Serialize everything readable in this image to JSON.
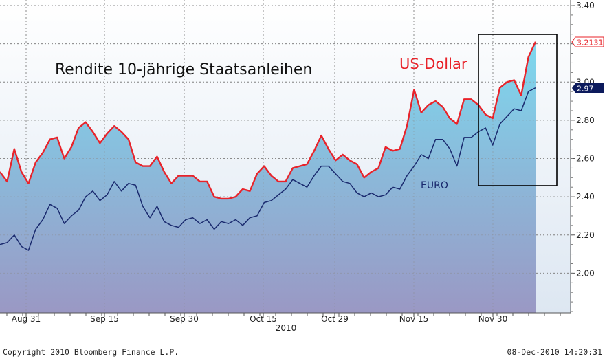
{
  "chart_data": {
    "type": "area",
    "title": "Rendite 10-jährige Staatsanleihen",
    "year_label": "2010",
    "x_tick_labels": [
      "Aug 31",
      "Sep 15",
      "Sep 30",
      "Oct 15",
      "Oct 29",
      "Nov 15",
      "Nov 30"
    ],
    "ylim": [
      1.8,
      3.4
    ],
    "y_ticks": [
      2.0,
      2.2,
      2.4,
      2.6,
      2.8,
      3.0,
      3.2,
      3.4
    ],
    "y_tick_labels": [
      "2.00",
      "2.20",
      "2.40",
      "2.60",
      "2.80",
      "3.00",
      "3.20",
      "3.40"
    ],
    "grid": true,
    "series": [
      {
        "name": "US-Dollar",
        "color": "#e8232a",
        "last_value_label": "3.2131",
        "values": [
          2.53,
          2.48,
          2.65,
          2.53,
          2.47,
          2.58,
          2.63,
          2.7,
          2.71,
          2.6,
          2.66,
          2.76,
          2.79,
          2.74,
          2.68,
          2.73,
          2.77,
          2.74,
          2.7,
          2.58,
          2.56,
          2.56,
          2.61,
          2.53,
          2.47,
          2.51,
          2.51,
          2.51,
          2.48,
          2.48,
          2.4,
          2.39,
          2.39,
          2.4,
          2.44,
          2.43,
          2.52,
          2.56,
          2.51,
          2.48,
          2.48,
          2.55,
          2.56,
          2.57,
          2.64,
          2.72,
          2.65,
          2.59,
          2.62,
          2.59,
          2.57,
          2.5,
          2.53,
          2.55,
          2.66,
          2.64,
          2.65,
          2.77,
          2.96,
          2.84,
          2.88,
          2.9,
          2.87,
          2.81,
          2.78,
          2.91,
          2.91,
          2.88,
          2.83,
          2.81,
          2.97,
          3.0,
          3.01,
          2.93,
          3.13,
          3.21
        ]
      },
      {
        "name": "EURO",
        "color": "#1a2a6e",
        "last_value_label": "2.97",
        "values": [
          2.15,
          2.16,
          2.2,
          2.14,
          2.12,
          2.23,
          2.28,
          2.36,
          2.34,
          2.26,
          2.3,
          2.33,
          2.4,
          2.43,
          2.38,
          2.41,
          2.48,
          2.43,
          2.47,
          2.46,
          2.35,
          2.29,
          2.35,
          2.27,
          2.25,
          2.24,
          2.28,
          2.29,
          2.26,
          2.28,
          2.23,
          2.27,
          2.26,
          2.28,
          2.25,
          2.29,
          2.3,
          2.37,
          2.38,
          2.41,
          2.44,
          2.49,
          2.47,
          2.45,
          2.51,
          2.56,
          2.56,
          2.52,
          2.48,
          2.47,
          2.42,
          2.4,
          2.42,
          2.4,
          2.41,
          2.45,
          2.44,
          2.51,
          2.56,
          2.62,
          2.6,
          2.7,
          2.7,
          2.65,
          2.56,
          2.71,
          2.71,
          2.74,
          2.76,
          2.67,
          2.78,
          2.82,
          2.86,
          2.85,
          2.95,
          2.97
        ]
      }
    ]
  },
  "footer": {
    "copyright": "Copyright 2010 Bloomberg Finance L.P.",
    "timestamp": "08-Dec-2010 14:20:31"
  },
  "colors": {
    "area_top": "#7dd8ee",
    "area_bottom": "#9a98c4",
    "plot_bg_top": "#ffffff",
    "plot_bg_bottom": "#dde7f2",
    "highlight_box": "#000000"
  }
}
